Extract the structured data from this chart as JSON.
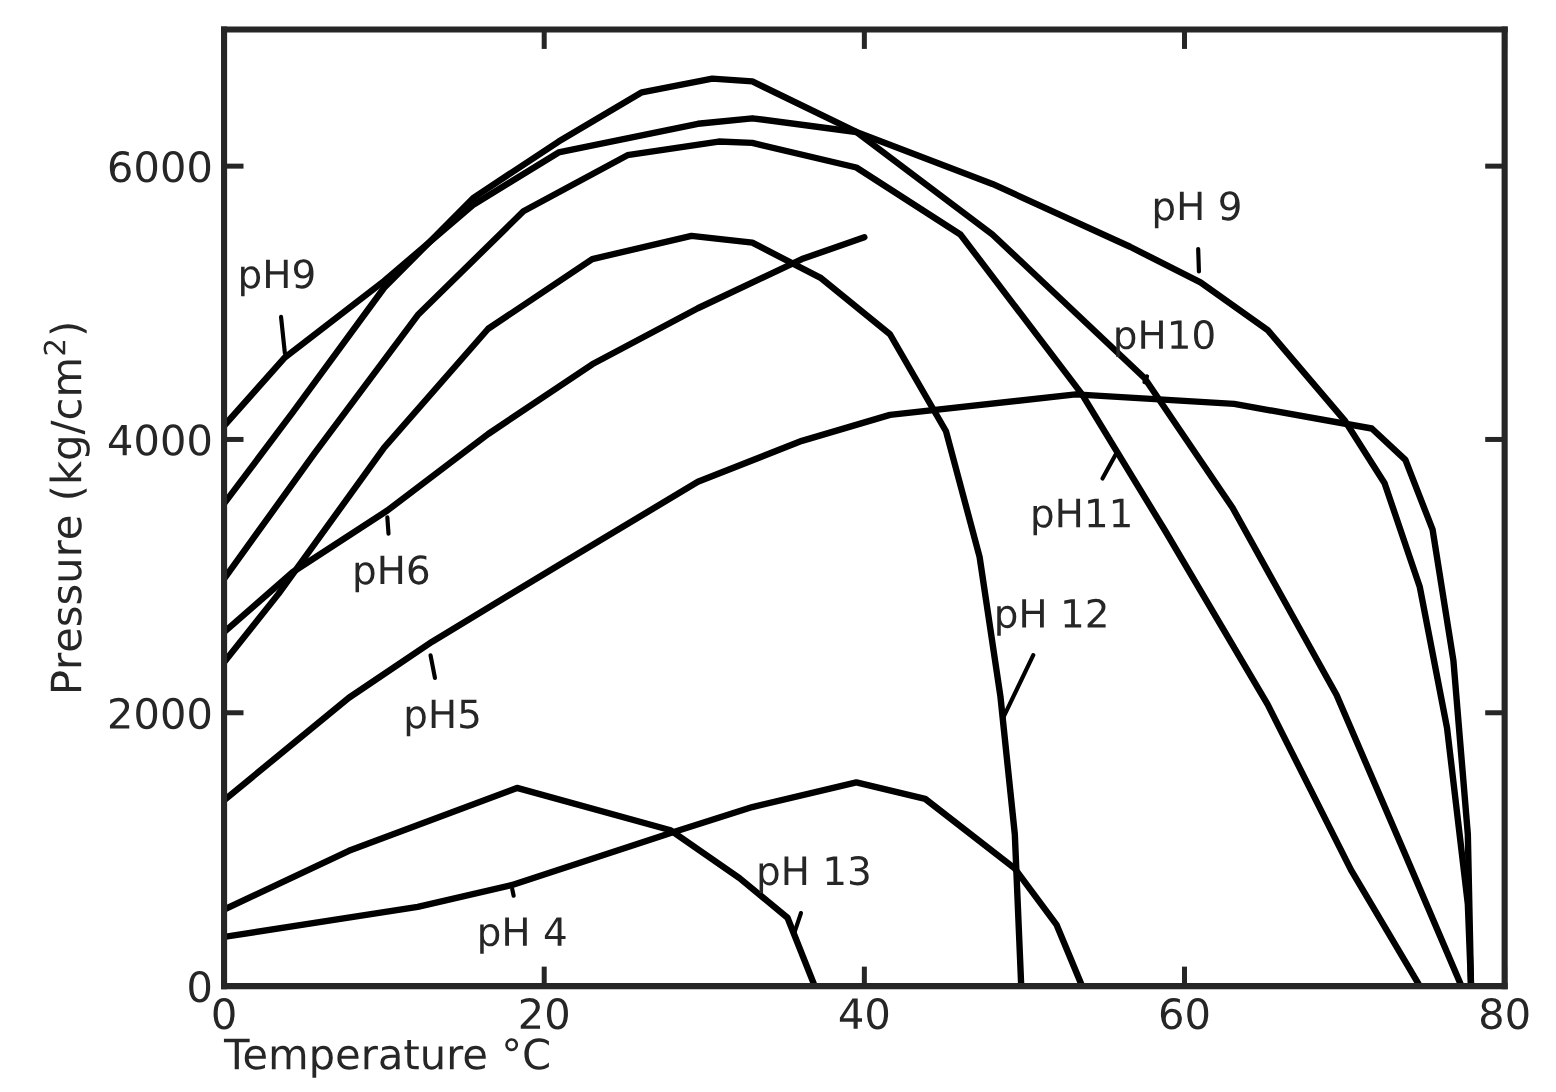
{
  "chart_data": {
    "type": "line",
    "xlabel": "Temperature °C",
    "ylabel": "Pressure (kg/cm$^{2}$)",
    "xlim": [
      0,
      80
    ],
    "ylim": [
      0,
      7000
    ],
    "xticks": [
      0,
      20,
      40,
      60,
      80
    ],
    "yticks": [
      0,
      2000,
      4000,
      6000
    ],
    "grid": false,
    "legend": false,
    "marker": "none",
    "line_style": "solid",
    "series": [
      {
        "color": "#000000",
        "x": [
          0,
          3.8,
          10,
          15.6,
          20.9,
          29.6,
          33,
          39.5,
          48,
          56.6,
          61,
          65.2,
          70,
          72.5,
          74.7,
          76.4,
          77.7,
          77.9
        ],
        "values": [
          4100,
          4600,
          5160,
          5720,
          6100,
          6310,
          6350,
          6250,
          5870,
          5410,
          5150,
          4800,
          4140,
          3680,
          2920,
          1890,
          600,
          0
        ]
      },
      {
        "color": "#000000",
        "x": [
          0,
          4.3,
          10,
          15.6,
          20.9,
          26.1,
          30.5,
          33,
          39.5,
          48,
          57.5,
          63,
          69.5,
          73.8,
          77.3
        ],
        "values": [
          3530,
          4200,
          5110,
          5770,
          6180,
          6540,
          6640,
          6620,
          6250,
          5500,
          4450,
          3500,
          2130,
          960,
          0
        ]
      },
      {
        "color": "#000000",
        "x": [
          0,
          5.6,
          12.1,
          18.7,
          25.2,
          30.9,
          33,
          39.5,
          46,
          53.6,
          58.8,
          65.2,
          70.4,
          74.7
        ],
        "values": [
          2980,
          3890,
          4910,
          5670,
          6080,
          6180,
          6170,
          5990,
          5500,
          4330,
          3330,
          2060,
          850,
          0
        ]
      },
      {
        "color": "#000000",
        "x": [
          0,
          3.4,
          10,
          16.5,
          23,
          29.2,
          33,
          37.3,
          41.6,
          45.1,
          47.2,
          48.5,
          49.4,
          49.8
        ],
        "values": [
          2370,
          2870,
          3940,
          4810,
          5320,
          5490,
          5440,
          5180,
          4770,
          4060,
          3140,
          2120,
          1110,
          0
        ]
      },
      {
        "color": "#000000",
        "x": [
          0,
          4.3,
          10.2,
          16.5,
          23,
          29.6,
          36.1,
          40
        ],
        "values": [
          2590,
          3030,
          3480,
          4040,
          4550,
          4960,
          5320,
          5480
        ]
      },
      {
        "color": "#000000",
        "x": [
          0,
          7.8,
          13,
          20.9,
          29.6,
          36.1,
          41.6,
          53.2,
          63.1,
          71.7,
          73.8,
          75.5,
          76.8,
          77.7,
          77.9
        ],
        "values": [
          1360,
          2110,
          2520,
          3080,
          3690,
          3990,
          4180,
          4330,
          4260,
          4080,
          3850,
          3340,
          2380,
          1110,
          0
        ]
      },
      {
        "color": "#000000",
        "x": [
          0,
          7.8,
          18.3,
          27.9,
          32.2,
          35.2,
          36.9
        ],
        "values": [
          560,
          990,
          1450,
          1140,
          790,
          500,
          0
        ]
      },
      {
        "color": "#000000",
        "x": [
          0,
          12.1,
          18,
          27.9,
          33,
          39.5,
          43.8,
          49.4,
          52,
          53.6
        ],
        "values": [
          360,
          580,
          740,
          1120,
          1310,
          1490,
          1370,
          860,
          450,
          0
        ]
      }
    ],
    "annotations": [
      {
        "text": "pH9",
        "x": 3.8,
        "y": 4630
      },
      {
        "text": "pH6",
        "x": 10.2,
        "y": 3430
      },
      {
        "text": "pH5",
        "x": 12.9,
        "y": 2420
      },
      {
        "text": "pH 4",
        "x": 18,
        "y": 710
      },
      {
        "text": "pH 13",
        "x": 35.6,
        "y": 380
      },
      {
        "text": "pH 12",
        "x": 48.7,
        "y": 1970
      },
      {
        "text": "pH11",
        "x": 55.7,
        "y": 3890
      },
      {
        "text": "pH10",
        "x": 57.5,
        "y": 4420
      },
      {
        "text": "pH 9",
        "x": 60.9,
        "y": 5230
      }
    ]
  }
}
